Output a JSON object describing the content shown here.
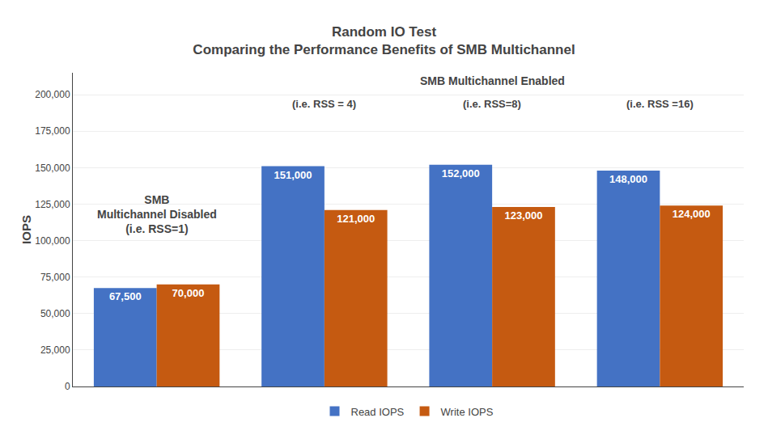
{
  "chart_data": {
    "type": "bar",
    "title": "Random IO Test",
    "subtitle": "Comparing the Performance Benefits of SMB Multichannel",
    "y_label": "IOPS",
    "categories": [
      null,
      null,
      null,
      null
    ],
    "series": [
      {
        "name": "Read IOPS",
        "color": "#4472C4",
        "values": [
          67500,
          151000,
          152000,
          148000
        ],
        "value_labels": [
          "67,500",
          "151,000",
          "152,000",
          "148,000"
        ]
      },
      {
        "name": "Write IOPS",
        "color": "#C55A11",
        "values": [
          70000,
          121000,
          123000,
          124000
        ],
        "value_labels": [
          "70,000",
          "121,000",
          "123,000",
          "124,000"
        ]
      }
    ],
    "ylim": [
      0,
      215000
    ],
    "yticks": [
      0,
      {
        "value": 25000,
        "label": "25,000"
      },
      {
        "value": 50000,
        "label": "50,000"
      },
      {
        "value": 75000,
        "label": "75,000"
      },
      {
        "value": 100000,
        "label": "100,000"
      },
      {
        "value": 125000,
        "label": "125,000"
      },
      {
        "value": 150000,
        "label": "150,000"
      },
      {
        "value": 175000,
        "label": "175,000"
      },
      {
        "value": 200000,
        "label": "200,000"
      }
    ],
    "annotations": [
      "SMB\nMultichannel Disabled\n(i.e. RSS=1)",
      "SMB Multichannel Enabled",
      "(i.e. RSS = 4)",
      "(i.e. RSS=8)",
      "(i.e. RSS =16)"
    ],
    "grid": true,
    "legend": "bottom",
    "data_labels": true,
    "tick_labels": "y"
  }
}
